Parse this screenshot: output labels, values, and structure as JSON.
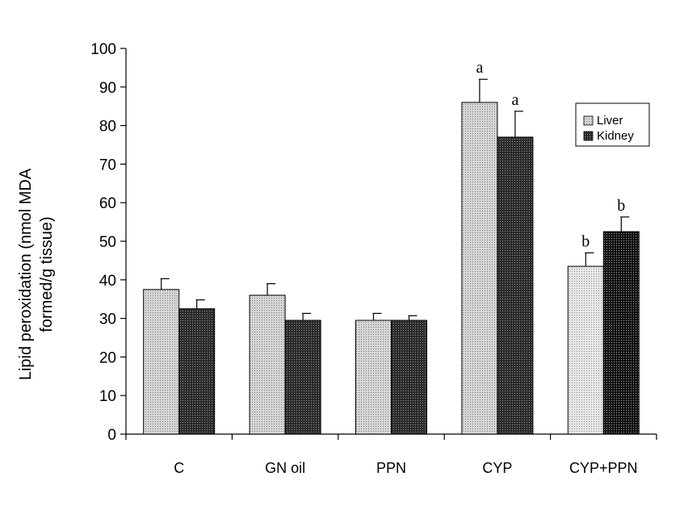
{
  "chart_data": {
    "type": "bar",
    "categories": [
      "C",
      "GN oil",
      "PPN",
      "CYP",
      "CYP+PPN"
    ],
    "series": [
      {
        "name": "Liver",
        "values": [
          37.5,
          36,
          29.5,
          86,
          43.5
        ],
        "errors": [
          2.8,
          3,
          1.8,
          6,
          3.5
        ],
        "annotations": [
          "",
          "",
          "",
          "a",
          "b"
        ]
      },
      {
        "name": "Kidney",
        "values": [
          32.5,
          29.5,
          29.5,
          77,
          52.5
        ],
        "errors": [
          2.3,
          1.8,
          1.2,
          6.7,
          3.8
        ],
        "annotations": [
          "",
          "",
          "",
          "a",
          "b"
        ]
      }
    ],
    "ylabel": [
      "Lipid peroxidation (nmol MDA",
      "formed/g tissue)"
    ],
    "xlabel": "",
    "ylim": [
      0,
      100
    ],
    "yticks": [
      0,
      10,
      20,
      30,
      40,
      50,
      60,
      70,
      80,
      90,
      100
    ],
    "legend_position": "top-right",
    "grid": false,
    "colors": {
      "liver": "#c8c8c8",
      "kidney": "#3a3a3a",
      "axis": "#000000"
    }
  }
}
